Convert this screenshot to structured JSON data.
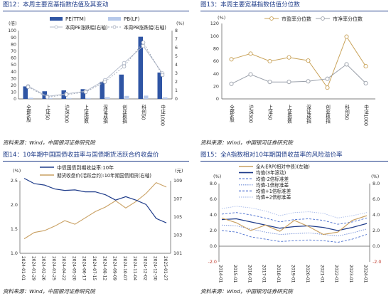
{
  "panels": [
    {
      "title": "图12：本周主要宽基指数估值及其变动",
      "source": "资料来源：Wind，中国银河证券研究院",
      "chart_data": {
        "type": "bar",
        "categories": [
          "全部A股",
          "上证50",
          "沪深300",
          "上证指数",
          "深证成指",
          "创业板指",
          "科创50",
          "中证1000"
        ],
        "series": [
          {
            "name": "PE(TTM)",
            "axis": "left",
            "kind": "bar",
            "values": [
              18.3,
              11.2,
              12.5,
              14.3,
              25.1,
              35.6,
              91.0,
              38.6
            ],
            "color": "#2f55a4"
          },
          {
            "name": "PB(LF)",
            "axis": "left",
            "kind": "bar",
            "values": [
              1.6,
              1.2,
              1.3,
              1.3,
              2.6,
              4.4,
              4.8,
              2.2
            ],
            "color": "#b7c9ea"
          },
          {
            "name": "本周PE涨跌幅(右轴)",
            "axis": "right",
            "kind": "line",
            "values": [
              1.5,
              0.3,
              0.6,
              0.9,
              2.2,
              4.2,
              6.2,
              3.0
            ],
            "color": "#b0b8c8"
          },
          {
            "name": "本周PB涨跌幅(右轴)",
            "axis": "right",
            "kind": "line",
            "values": [
              1.4,
              0.2,
              0.5,
              0.8,
              2.0,
              3.8,
              6.6,
              2.8
            ],
            "color": "#9aa3b5"
          }
        ],
        "ylim_left": [
          0,
          100
        ],
        "yticks_left": [
          "0",
          "10",
          "20",
          "30",
          "40",
          "50",
          "60",
          "70",
          "80",
          "90",
          "100"
        ],
        "ylim_right": [
          0,
          8
        ],
        "yticks_right": [
          "0",
          "1",
          "2",
          "3",
          "4",
          "5",
          "6",
          "7",
          "8"
        ],
        "left_unit": "(倍)",
        "right_unit": "(%)",
        "legend_position": "top-right"
      }
    },
    {
      "title": "图13：本周主要宽基指数估值分位数",
      "source": "资料来源：Wind，中国银河证券研究院",
      "chart_data": {
        "type": "line",
        "categories": [
          "全部A股",
          "沪深300",
          "上证50",
          "上证指数",
          "深证成指",
          "创业板指",
          "科创50",
          "中证1000"
        ],
        "series": [
          {
            "name": "市盈率分位数",
            "values": [
              63,
              72,
              60,
              66,
              61,
              18,
              99,
              52
            ],
            "color": "#c9a35a"
          },
          {
            "name": "市净率分位数",
            "values": [
              24,
              39,
              27,
              27,
              28,
              32,
              55,
              25
            ],
            "color": "#9aa0aa"
          }
        ],
        "ylim": [
          0,
          120
        ],
        "yticks": [
          "0",
          "20",
          "40",
          "60",
          "80",
          "100",
          "120"
        ],
        "y_unit": "(%)",
        "legend_position": "top"
      }
    },
    {
      "title": "图14：10年期中国国债收益率与国债期货活跃合约收盘价",
      "source": "资料来源：Wind，中国银河证券研究院",
      "chart_data": {
        "type": "line",
        "x": [
          "2024-01-01",
          "2024-01-29",
          "2024-02-26",
          "2024-03-25",
          "2024-04-22",
          "2024-05-20",
          "2024-06-17",
          "2024-07-15",
          "2024-08-12",
          "2024-09-09",
          "2024-10-07",
          "2024-11-04",
          "2024-12-02",
          "2024-12-30",
          "2025-01-27"
        ],
        "series": [
          {
            "name": "中债国债到期收益率:10年",
            "axis": "left",
            "values": [
              2.55,
              2.44,
              2.41,
              2.33,
              2.3,
              2.31,
              2.27,
              2.27,
              2.21,
              2.1,
              2.17,
              2.1,
              2.01,
              1.72,
              1.63
            ],
            "color": "#1f3c8a"
          },
          {
            "name": "期货收盘价(活跃合约):10年期国债期货(右轴)",
            "axis": "right",
            "values": [
              102.6,
              103.3,
              103.5,
              104.0,
              104.6,
              104.2,
              104.9,
              105.6,
              106.1,
              106.8,
              106.0,
              106.7,
              107.6,
              108.8,
              108.3
            ],
            "color": "#c9a062"
          }
        ],
        "ylim_left": [
          1.0,
          2.5
        ],
        "yticks_left": [
          "1.0",
          "1.5",
          "2.0",
          "2.5"
        ],
        "ylim_right": [
          101,
          109
        ],
        "yticks_right": [
          "101",
          "103",
          "105",
          "107",
          "109"
        ],
        "left_unit": "(%)",
        "right_unit": "(元)",
        "legend_position": "top"
      }
    },
    {
      "title": "图15：全A指数相对10年期国债收益率的风险溢价率",
      "source": "资料来源：Wind，中国银河证券研究院",
      "chart_data": {
        "type": "line",
        "x": [
          "2014-01",
          "2015-01",
          "2016-01",
          "2017-01",
          "2018-01",
          "2019-01",
          "2020-01",
          "2021-01",
          "2022-01",
          "2023-01",
          "2024-01"
        ],
        "series": [
          {
            "name": "全A:ERP(相对中债)(左轴)",
            "values": [
              3.6,
              3.0,
              2.0,
              2.7,
              1.9,
              3.3,
              2.5,
              1.5,
              1.8,
              3.3,
              3.9
            ],
            "color": "#c9a062"
          },
          {
            "name": "均值(3年滚动)",
            "values": [
              3.4,
              3.5,
              3.1,
              2.7,
              2.3,
              2.5,
              2.6,
              2.4,
              2.0,
              2.4,
              2.9
            ],
            "color": "#1f3c8a"
          },
          {
            "name": "均值-2倍标准差",
            "values": [
              2.0,
              1.8,
              1.2,
              0.9,
              0.6,
              0.7,
              0.8,
              0.7,
              0.5,
              0.9,
              1.5
            ],
            "color": "#4a6fcf"
          },
          {
            "name": "均值-1倍标准差",
            "values": [
              2.7,
              2.6,
              2.2,
              1.8,
              1.5,
              1.6,
              1.7,
              1.5,
              1.3,
              1.7,
              2.2
            ],
            "color": "#6e8bd6"
          },
          {
            "name": "均值+1倍标准差",
            "values": [
              4.1,
              4.3,
              4.0,
              3.6,
              3.1,
              3.4,
              3.5,
              3.3,
              2.8,
              3.1,
              3.6
            ],
            "color": "#4a6fcf"
          },
          {
            "name": "均值+2倍标准差",
            "values": [
              4.8,
              5.1,
              4.9,
              4.5,
              3.9,
              4.3,
              4.4,
              4.2,
              3.6,
              3.9,
              4.3
            ],
            "color": "#a9bcea"
          }
        ],
        "ylim": [
          -2.0,
          8.0
        ],
        "yticks_left": [
          "-2.0",
          "0.0",
          "2.0",
          "4.0",
          "6.0",
          "8.0"
        ],
        "yticks_right": [
          "-2.0",
          "0.0",
          "2.0",
          "4.0",
          "6.0",
          "8.0"
        ],
        "y_unit": "(%)",
        "legend_position": "top-left"
      }
    }
  ]
}
